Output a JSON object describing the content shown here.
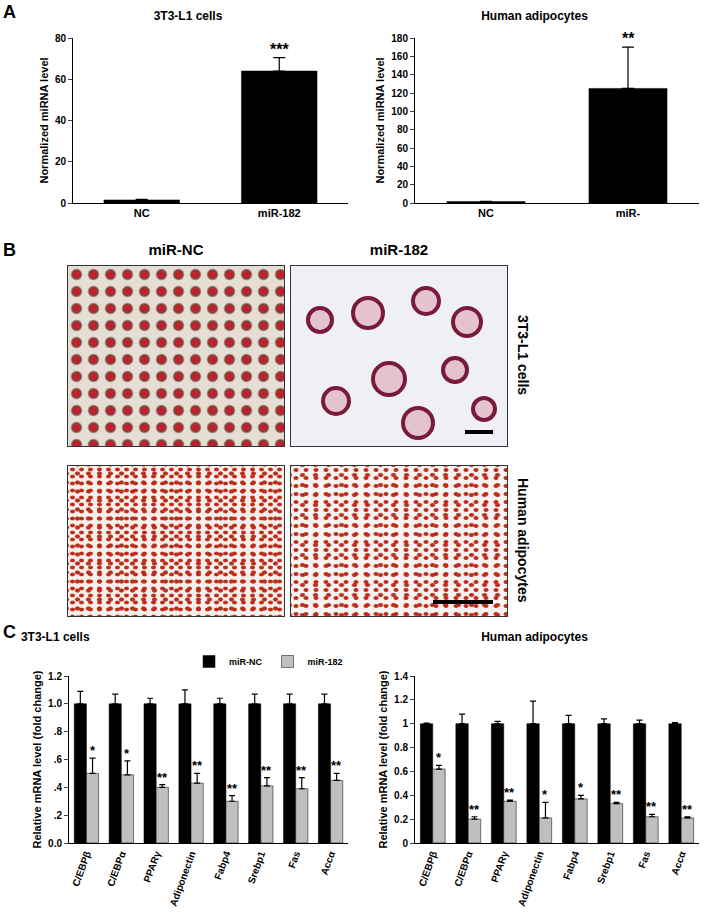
{
  "panel_labels": [
    "A",
    "B",
    "C"
  ],
  "image_panel": {
    "columns": [
      "miR-NC",
      "miR-182"
    ],
    "rows": [
      "3T3-L1 cells",
      "Human adipocytes"
    ]
  },
  "chart_data": [
    {
      "type": "bar",
      "title": "3T3-L1 cells",
      "ylabel": "Normalized miRNA level",
      "categories": [
        "NC",
        "miR-182"
      ],
      "values": [
        1.5,
        64
      ],
      "error": [
        0.3,
        6.5
      ],
      "color": "#000000",
      "ylim": [
        0,
        80
      ],
      "yticks": [
        0,
        20,
        40,
        60,
        80
      ],
      "annotations": [
        {
          "x": "miR-182",
          "text": "***"
        }
      ]
    },
    {
      "type": "bar",
      "title": "Human adipocytes",
      "ylabel": "Normalized miRNA level",
      "categories": [
        "NC",
        "miR-"
      ],
      "values": [
        1.6,
        125
      ],
      "error": [
        0.3,
        45
      ],
      "color": "#000000",
      "ylim": [
        0,
        180
      ],
      "yticks": [
        0,
        20,
        40,
        60,
        80,
        100,
        120,
        140,
        160,
        180
      ],
      "annotations": [
        {
          "x": "miR-",
          "text": "**"
        }
      ]
    },
    {
      "type": "bar",
      "title": "3T3-L1 cells",
      "ylabel": "Relative mRNA level (fold change)",
      "categories": [
        "C/EBPβ",
        "C/EBPα",
        "PPARγ",
        "Adiponectin",
        "Fabp4",
        "Srebp1",
        "Fas",
        "Accα"
      ],
      "series": [
        {
          "name": "miR-NC",
          "color": "#000000",
          "values": [
            1,
            1,
            1,
            1,
            1,
            1,
            1,
            1
          ],
          "error": [
            0.09,
            0.07,
            0.04,
            0.1,
            0.04,
            0.07,
            0.07,
            0.07
          ]
        },
        {
          "name": "miR-182",
          "color": "#bfbfbf",
          "values": [
            0.5,
            0.49,
            0.4,
            0.43,
            0.3,
            0.41,
            0.39,
            0.45
          ],
          "error": [
            0.11,
            0.1,
            0.02,
            0.07,
            0.04,
            0.06,
            0.08,
            0.05
          ]
        }
      ],
      "ylim": [
        0,
        1.2
      ],
      "yticks": [
        {
          "value": 0,
          "label": "0.0"
        },
        {
          "value": 0.2,
          "label": ".2"
        },
        {
          "value": 0.4,
          "label": ".4"
        },
        {
          "value": 0.6,
          "label": ".6"
        },
        {
          "value": 0.8,
          "label": ".8"
        },
        {
          "value": 1,
          "label": "1.0"
        },
        1.2
      ],
      "legend": "top",
      "annotations": [
        {
          "x": "C/EBPβ",
          "text": "*"
        },
        {
          "x": "C/EBPα",
          "text": "*"
        },
        {
          "x": "PPARγ",
          "text": "**"
        },
        {
          "x": "Adiponectin",
          "text": "**"
        },
        {
          "x": "Fabp4",
          "text": "**"
        },
        {
          "x": "Srebp1",
          "text": "**"
        },
        {
          "x": "Fas",
          "text": "**"
        },
        {
          "x": "Accα",
          "text": "**"
        }
      ]
    },
    {
      "type": "bar",
      "title": "Human adipocytes",
      "ylabel": "Relative mRNA level (fold change)",
      "categories": [
        "C/EBPβ",
        "C/EBPα",
        "PPARγ",
        "Adiponectin",
        "Fabp4",
        "Srebp1",
        "Fas",
        "Accα"
      ],
      "series": [
        {
          "color": "#000000",
          "values": [
            1,
            1,
            1,
            1,
            1,
            1,
            1,
            1
          ],
          "error": [
            0.005,
            0.08,
            0.02,
            0.19,
            0.07,
            0.04,
            0.03,
            0.01
          ]
        },
        {
          "color": "#bfbfbf",
          "values": [
            0.62,
            0.2,
            0.35,
            0.21,
            0.37,
            0.33,
            0.22,
            0.21
          ],
          "error": [
            0.03,
            0.02,
            0.01,
            0.13,
            0.03,
            0.01,
            0.02,
            0.01
          ]
        }
      ],
      "ylim": [
        0,
        1.4
      ],
      "yticks": [
        0,
        0.2,
        0.4,
        0.6,
        0.8,
        1,
        1.2,
        1.4
      ],
      "annotations": [
        {
          "x": "C/EBPβ",
          "text": "*"
        },
        {
          "x": "C/EBPα",
          "text": "**"
        },
        {
          "x": "PPARγ",
          "text": "**"
        },
        {
          "x": "Adiponectin",
          "text": "*"
        },
        {
          "x": "Fabp4",
          "text": "*"
        },
        {
          "x": "Srebp1",
          "text": "**"
        },
        {
          "x": "Fas",
          "text": "**"
        },
        {
          "x": "Accα",
          "text": "**"
        }
      ]
    }
  ]
}
